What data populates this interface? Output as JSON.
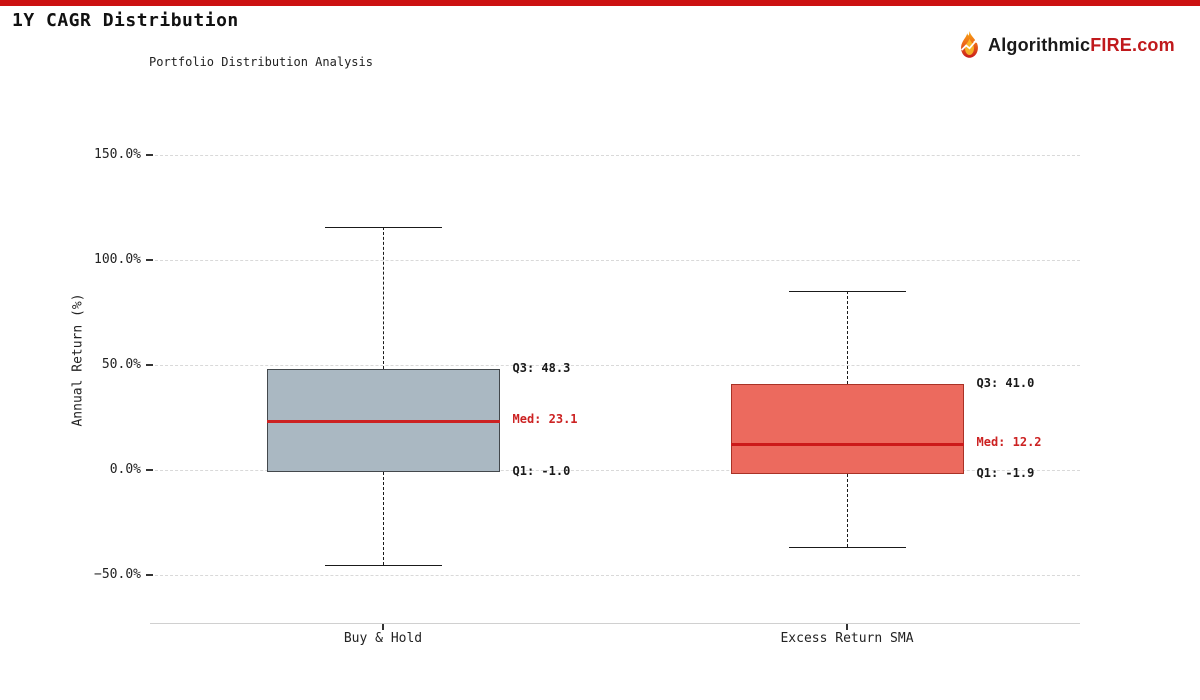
{
  "page": {
    "title": "1Y CAGR Distribution"
  },
  "theme": {
    "accent_red": "#cc1111",
    "logo_text_dark": "#1a1a1a",
    "logo_text_red": "#c0191c",
    "annotation_black": "#1a1a1a",
    "annotation_red": "#cc2222"
  },
  "logo": {
    "icon": "flame-chart-icon",
    "prefix": "Algorithmic",
    "highlight": "FIRE",
    "suffix": ".com"
  },
  "chart_data": {
    "type": "boxplot",
    "title": "1Y CAGR Distribution",
    "subtitle": "Portfolio Distribution Analysis",
    "xlabel": "",
    "ylabel": "Annual Return (%)",
    "ylim": [
      -73,
      176
    ],
    "grid": "dashed-horizontal",
    "y_axis": {
      "tick_values": [
        150,
        100,
        50,
        0,
        -50
      ],
      "tick_labels": [
        "150.0%",
        "100.0%",
        "50.0%",
        "0.0%",
        "−50.0%"
      ]
    },
    "categories": [
      "Buy & Hold",
      "Excess Return SMA"
    ],
    "series": [
      {
        "name": "Buy & Hold",
        "whisker_low": -45.2,
        "q1": -1.0,
        "median": 23.1,
        "q3": 48.3,
        "whisker_high": 115.7,
        "box_fill": "#aab8c2",
        "box_border": "#43484c",
        "median_color": "#cc2222",
        "annotations": {
          "q3": "Q3: 48.3",
          "med": "Med: 23.1",
          "q1": "Q1: -1.0"
        }
      },
      {
        "name": "Excess Return SMA",
        "whisker_low": -36.7,
        "q1": -1.9,
        "median": 12.2,
        "q3": 41.0,
        "whisker_high": 85.2,
        "box_fill": "#ec6a5e",
        "box_border": "#a93226",
        "median_color": "#cc1a1a",
        "annotations": {
          "q3": "Q3: 41.0",
          "med": "Med: 12.2",
          "q1": "Q1: -1.9"
        }
      }
    ]
  }
}
